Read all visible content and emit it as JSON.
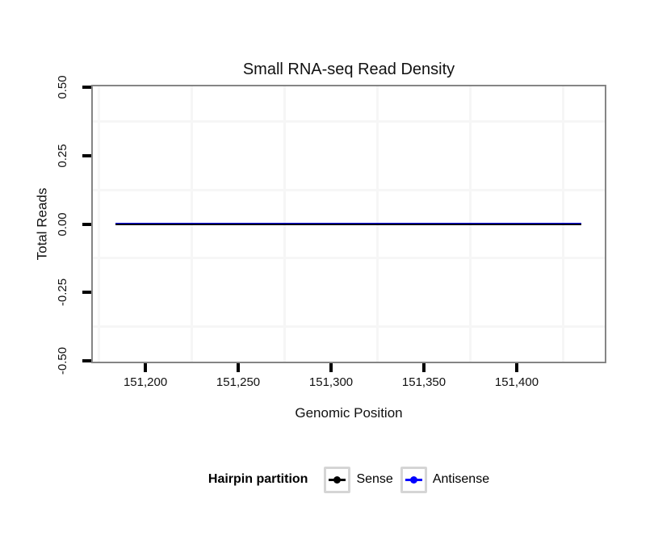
{
  "title": "Small RNA-seq Read Density",
  "chart_data": {
    "type": "line",
    "title": "Small RNA-seq Read Density",
    "xlabel": "Genomic Position",
    "ylabel": "Total Reads",
    "xlim": [
      151171.7,
      151447.4
    ],
    "ylim": [
      -0.504,
      0.504
    ],
    "x_ticks": [
      {
        "value": 151200,
        "label": "151,200"
      },
      {
        "value": 151250,
        "label": "151,250"
      },
      {
        "value": 151300,
        "label": "151,300"
      },
      {
        "value": 151350,
        "label": "151,350"
      },
      {
        "value": 151400,
        "label": "151,400"
      }
    ],
    "y_ticks": [
      {
        "value": 0.5,
        "label": "0.50"
      },
      {
        "value": 0.25,
        "label": "0.25"
      },
      {
        "value": 0.0,
        "label": "0.00"
      },
      {
        "value": -0.25,
        "label": "-0.25"
      },
      {
        "value": -0.5,
        "label": "-0.50"
      }
    ],
    "x_minor_gridlines": [
      151175,
      151225,
      151275,
      151325,
      151375,
      151425
    ],
    "y_minor_gridlines": [
      0.375,
      0.125,
      -0.125,
      -0.375
    ],
    "grid": {
      "minor_color": "#f6f6f6",
      "major_color": "#ffffff"
    },
    "series": [
      {
        "name": "Sense",
        "color": "#000000",
        "line_width": 2,
        "x": [
          151184,
          151435
        ],
        "y": [
          0,
          0
        ]
      },
      {
        "name": "Antisense",
        "color": "#0000ff",
        "line_width": 3,
        "x": [
          151184,
          151435
        ],
        "y": [
          0,
          0
        ]
      }
    ],
    "legend": {
      "title": "Hairpin partition",
      "position": "bottom",
      "entries": [
        {
          "label": "Sense",
          "color": "#000000"
        },
        {
          "label": "Antisense",
          "color": "#0000ff"
        }
      ]
    }
  },
  "colors": {
    "panel_border": "#858585",
    "tick": "#000000",
    "background": "#ffffff",
    "legend_key_border": "#d5d5d5"
  }
}
